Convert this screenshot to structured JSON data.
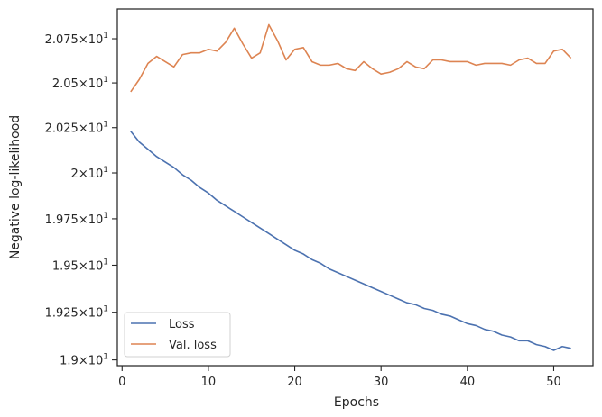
{
  "chart_data": {
    "type": "line",
    "xlabel": "Epochs",
    "ylabel": "Negative log-likelihood",
    "xlim": [
      -0.55,
      54.55
    ],
    "ylim": [
      18.97,
      20.92
    ],
    "y_scale": "log",
    "grid": false,
    "legend_position": "lower-left",
    "x_ticks": [
      {
        "value": 0,
        "label": "0"
      },
      {
        "value": 10,
        "label": "10"
      },
      {
        "value": 20,
        "label": "20"
      },
      {
        "value": 30,
        "label": "30"
      },
      {
        "value": 40,
        "label": "40"
      },
      {
        "value": 50,
        "label": "50"
      }
    ],
    "y_ticks": [
      {
        "value": 19.0,
        "mantissa": "1.9"
      },
      {
        "value": 19.25,
        "mantissa": "1.925"
      },
      {
        "value": 19.5,
        "mantissa": "1.95"
      },
      {
        "value": 19.75,
        "mantissa": "1.975"
      },
      {
        "value": 20.0,
        "mantissa": "2"
      },
      {
        "value": 20.25,
        "mantissa": "2.025"
      },
      {
        "value": 20.5,
        "mantissa": "2.05"
      },
      {
        "value": 20.75,
        "mantissa": "2.075"
      }
    ],
    "y_tick_times": "×",
    "y_tick_base": "10",
    "y_tick_exp": "1",
    "x": [
      1,
      2,
      3,
      4,
      5,
      6,
      7,
      8,
      9,
      10,
      11,
      12,
      13,
      14,
      15,
      16,
      17,
      18,
      19,
      20,
      21,
      22,
      23,
      24,
      25,
      26,
      27,
      28,
      29,
      30,
      31,
      32,
      33,
      34,
      35,
      36,
      37,
      38,
      39,
      40,
      41,
      42,
      43,
      44,
      45,
      46,
      47,
      48,
      49,
      50,
      51,
      52
    ],
    "series": [
      {
        "name": "Loss",
        "color": "#4c72b0",
        "values": [
          20.23,
          20.17,
          20.13,
          20.09,
          20.06,
          20.03,
          19.99,
          19.96,
          19.92,
          19.89,
          19.85,
          19.82,
          19.79,
          19.76,
          19.73,
          19.7,
          19.67,
          19.64,
          19.61,
          19.58,
          19.56,
          19.53,
          19.51,
          19.48,
          19.46,
          19.44,
          19.42,
          19.4,
          19.38,
          19.36,
          19.34,
          19.32,
          19.3,
          19.29,
          19.27,
          19.26,
          19.24,
          19.23,
          19.21,
          19.19,
          19.18,
          19.16,
          19.15,
          19.13,
          19.12,
          19.1,
          19.1,
          19.08,
          19.07,
          19.05,
          19.07,
          19.06
        ]
      },
      {
        "name": "Val. loss",
        "color": "#dd8452",
        "values": [
          20.45,
          20.52,
          20.61,
          20.65,
          20.62,
          20.59,
          20.66,
          20.67,
          20.67,
          20.69,
          20.68,
          20.73,
          20.81,
          20.72,
          20.64,
          20.67,
          20.83,
          20.74,
          20.63,
          20.69,
          20.7,
          20.62,
          20.6,
          20.6,
          20.61,
          20.58,
          20.57,
          20.62,
          20.58,
          20.55,
          20.56,
          20.58,
          20.62,
          20.59,
          20.58,
          20.63,
          20.63,
          20.62,
          20.62,
          20.62,
          20.6,
          20.61,
          20.61,
          20.61,
          20.6,
          20.63,
          20.64,
          20.61,
          20.61,
          20.68,
          20.69,
          20.64
        ]
      }
    ]
  }
}
